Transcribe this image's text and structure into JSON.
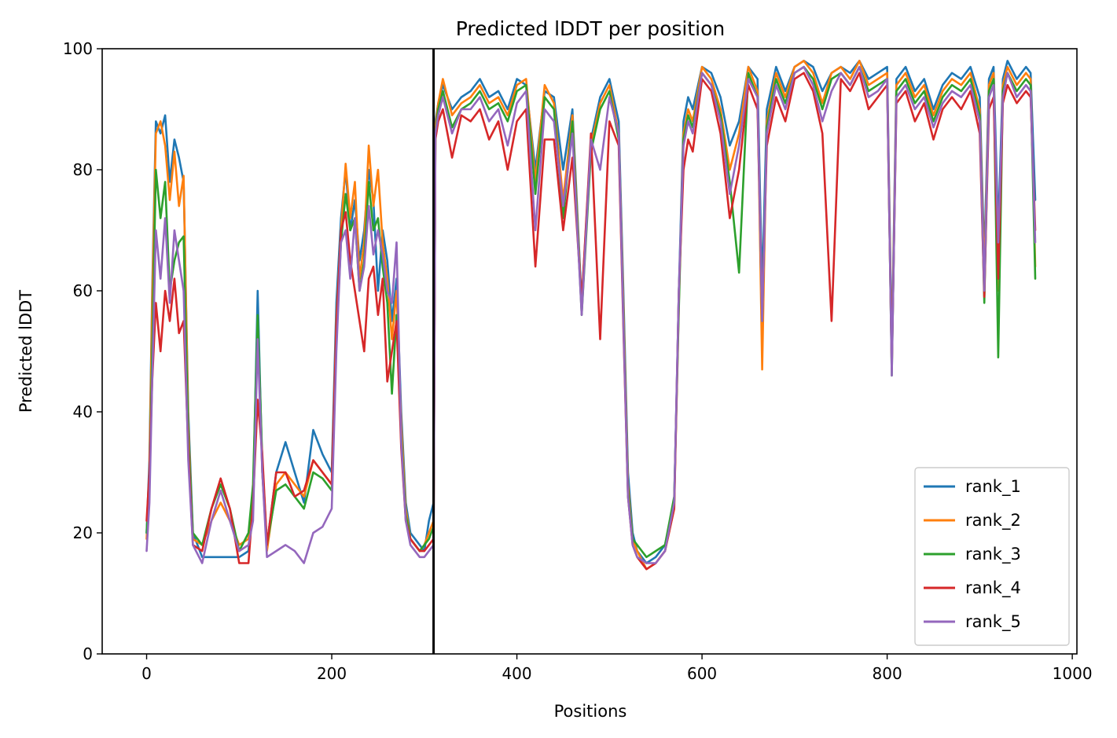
{
  "chart_data": {
    "type": "line",
    "title": "Predicted lDDT per position",
    "xlabel": "Positions",
    "ylabel": "Predicted lDDT",
    "xlim": [
      -48,
      1005
    ],
    "ylim": [
      0,
      100
    ],
    "xticks": [
      0,
      200,
      400,
      600,
      800,
      1000
    ],
    "yticks": [
      0,
      20,
      40,
      60,
      80,
      100
    ],
    "grid": false,
    "legend_position": "lower-right",
    "vline": {
      "x": 310,
      "color": "#000000"
    },
    "series": [
      {
        "name": "rank_1",
        "color": "#1f77b4",
        "x": [
          0,
          3,
          6,
          10,
          15,
          20,
          25,
          30,
          35,
          40,
          45,
          50,
          60,
          70,
          80,
          90,
          100,
          110,
          115,
          120,
          125,
          130,
          140,
          150,
          160,
          170,
          180,
          190,
          200,
          205,
          210,
          215,
          220,
          225,
          230,
          235,
          240,
          245,
          250,
          255,
          260,
          265,
          270,
          275,
          280,
          285,
          290,
          295,
          300,
          305,
          310,
          312,
          315,
          320,
          330,
          340,
          350,
          360,
          370,
          380,
          390,
          400,
          410,
          420,
          430,
          440,
          450,
          460,
          470,
          480,
          490,
          500,
          510,
          515,
          520,
          525,
          530,
          540,
          550,
          560,
          570,
          575,
          580,
          585,
          590,
          600,
          610,
          620,
          630,
          640,
          650,
          660,
          665,
          670,
          680,
          690,
          700,
          710,
          720,
          730,
          740,
          750,
          760,
          770,
          780,
          790,
          800,
          805,
          810,
          820,
          830,
          840,
          850,
          860,
          870,
          880,
          890,
          900,
          905,
          910,
          915,
          920,
          925,
          930,
          940,
          950,
          955,
          960
        ],
        "y": [
          20,
          32,
          60,
          88,
          86,
          89,
          78,
          85,
          82,
          78,
          40,
          20,
          16,
          16,
          16,
          16,
          16,
          17,
          25,
          60,
          30,
          18,
          30,
          35,
          30,
          25,
          37,
          33,
          30,
          58,
          72,
          80,
          70,
          75,
          65,
          70,
          80,
          75,
          60,
          70,
          65,
          55,
          62,
          40,
          25,
          20,
          19,
          18,
          17,
          22,
          25,
          88,
          91,
          94,
          90,
          92,
          93,
          95,
          92,
          93,
          90,
          95,
          94,
          80,
          93,
          92,
          80,
          90,
          58,
          85,
          92,
          95,
          88,
          60,
          30,
          20,
          17,
          15,
          16,
          18,
          25,
          60,
          88,
          92,
          90,
          97,
          96,
          92,
          84,
          88,
          97,
          95,
          60,
          90,
          97,
          93,
          97,
          98,
          97,
          93,
          96,
          97,
          96,
          98,
          95,
          96,
          97,
          50,
          95,
          97,
          93,
          95,
          90,
          94,
          96,
          95,
          97,
          92,
          65,
          95,
          97,
          70,
          95,
          98,
          95,
          97,
          96,
          75
        ]
      },
      {
        "name": "rank_2",
        "color": "#ff7f0e",
        "x": [
          0,
          3,
          6,
          10,
          15,
          20,
          25,
          30,
          35,
          40,
          45,
          50,
          60,
          70,
          80,
          90,
          100,
          110,
          115,
          120,
          125,
          130,
          140,
          150,
          160,
          170,
          180,
          190,
          200,
          205,
          210,
          215,
          220,
          225,
          230,
          235,
          240,
          245,
          250,
          255,
          260,
          265,
          270,
          275,
          280,
          285,
          290,
          295,
          300,
          305,
          310,
          312,
          315,
          320,
          330,
          340,
          350,
          360,
          370,
          380,
          390,
          400,
          410,
          420,
          430,
          440,
          450,
          460,
          470,
          480,
          490,
          500,
          510,
          515,
          520,
          525,
          530,
          540,
          550,
          560,
          570,
          575,
          580,
          585,
          590,
          600,
          610,
          620,
          630,
          640,
          650,
          660,
          665,
          670,
          680,
          690,
          700,
          710,
          720,
          730,
          740,
          750,
          760,
          770,
          780,
          790,
          800,
          805,
          810,
          820,
          830,
          840,
          850,
          860,
          870,
          880,
          890,
          900,
          905,
          910,
          915,
          920,
          925,
          930,
          940,
          950,
          955,
          960
        ],
        "y": [
          19,
          30,
          58,
          86,
          88,
          84,
          75,
          83,
          74,
          79,
          38,
          19,
          18,
          22,
          25,
          22,
          18,
          19,
          26,
          55,
          30,
          17,
          28,
          30,
          28,
          26,
          32,
          30,
          28,
          55,
          70,
          81,
          72,
          78,
          62,
          68,
          84,
          74,
          80,
          68,
          62,
          52,
          60,
          38,
          24,
          19,
          18,
          17,
          18,
          20,
          22,
          87,
          91,
          95,
          89,
          91,
          92,
          94,
          91,
          92,
          89,
          94,
          95,
          78,
          94,
          91,
          75,
          89,
          57,
          84,
          91,
          94,
          86,
          58,
          28,
          19,
          17,
          14,
          15,
          17,
          24,
          58,
          86,
          90,
          88,
          97,
          95,
          90,
          80,
          86,
          97,
          93,
          47,
          88,
          96,
          92,
          97,
          98,
          96,
          91,
          96,
          97,
          95,
          98,
          94,
          95,
          96,
          48,
          94,
          96,
          92,
          94,
          89,
          93,
          95,
          94,
          96,
          90,
          62,
          94,
          96,
          60,
          94,
          97,
          94,
          96,
          95,
          64
        ]
      },
      {
        "name": "rank_3",
        "color": "#2ca02c",
        "x": [
          0,
          3,
          6,
          10,
          15,
          20,
          25,
          30,
          35,
          40,
          45,
          50,
          60,
          70,
          80,
          90,
          100,
          110,
          115,
          120,
          125,
          130,
          140,
          150,
          160,
          170,
          180,
          190,
          200,
          205,
          210,
          215,
          220,
          225,
          230,
          235,
          240,
          245,
          250,
          255,
          260,
          265,
          270,
          275,
          280,
          285,
          290,
          295,
          300,
          305,
          310,
          312,
          315,
          320,
          330,
          340,
          350,
          360,
          370,
          380,
          390,
          400,
          410,
          420,
          430,
          440,
          450,
          460,
          470,
          480,
          490,
          500,
          510,
          515,
          520,
          525,
          530,
          540,
          550,
          560,
          570,
          575,
          580,
          585,
          590,
          600,
          610,
          620,
          630,
          640,
          650,
          660,
          665,
          670,
          680,
          690,
          700,
          710,
          720,
          730,
          740,
          750,
          760,
          770,
          780,
          790,
          800,
          805,
          810,
          820,
          830,
          840,
          850,
          860,
          870,
          880,
          890,
          900,
          905,
          910,
          915,
          920,
          925,
          930,
          940,
          950,
          955,
          960
        ],
        "y": [
          20,
          28,
          50,
          80,
          72,
          78,
          60,
          65,
          68,
          69,
          36,
          20,
          18,
          24,
          28,
          24,
          17,
          20,
          28,
          56,
          32,
          18,
          27,
          28,
          26,
          24,
          30,
          29,
          27,
          52,
          68,
          76,
          70,
          72,
          60,
          65,
          78,
          70,
          72,
          64,
          58,
          43,
          56,
          36,
          23,
          19,
          18,
          17,
          18,
          19,
          21,
          86,
          90,
          93,
          87,
          90,
          91,
          93,
          90,
          91,
          88,
          93,
          94,
          76,
          92,
          90,
          72,
          88,
          56,
          83,
          90,
          93,
          85,
          56,
          27,
          19,
          18,
          16,
          17,
          18,
          26,
          57,
          85,
          89,
          87,
          96,
          94,
          89,
          78,
          63,
          96,
          92,
          55,
          87,
          95,
          91,
          96,
          97,
          95,
          90,
          95,
          96,
          94,
          97,
          93,
          94,
          95,
          46,
          93,
          95,
          91,
          93,
          88,
          92,
          94,
          93,
          95,
          89,
          58,
          93,
          95,
          49,
          93,
          96,
          93,
          95,
          94,
          62
        ]
      },
      {
        "name": "rank_4",
        "color": "#d62728",
        "x": [
          0,
          3,
          6,
          10,
          15,
          20,
          25,
          30,
          35,
          40,
          45,
          50,
          60,
          70,
          80,
          90,
          100,
          110,
          115,
          120,
          125,
          130,
          140,
          150,
          160,
          170,
          180,
          190,
          200,
          205,
          210,
          215,
          220,
          225,
          230,
          235,
          240,
          245,
          250,
          255,
          260,
          265,
          270,
          275,
          280,
          285,
          290,
          295,
          300,
          305,
          310,
          312,
          315,
          320,
          330,
          340,
          350,
          360,
          370,
          380,
          390,
          400,
          410,
          420,
          430,
          440,
          450,
          460,
          470,
          480,
          490,
          500,
          510,
          515,
          520,
          525,
          530,
          540,
          550,
          560,
          570,
          575,
          580,
          585,
          590,
          600,
          610,
          620,
          630,
          640,
          650,
          660,
          665,
          670,
          680,
          690,
          700,
          710,
          720,
          730,
          740,
          750,
          760,
          770,
          780,
          790,
          800,
          805,
          810,
          820,
          830,
          840,
          850,
          860,
          870,
          880,
          890,
          900,
          905,
          910,
          915,
          920,
          925,
          930,
          940,
          950,
          955,
          960
        ],
        "y": [
          22,
          30,
          45,
          58,
          50,
          60,
          55,
          62,
          53,
          55,
          34,
          18,
          17,
          24,
          29,
          24,
          15,
          15,
          25,
          42,
          33,
          18,
          30,
          30,
          26,
          27,
          32,
          30,
          28,
          54,
          70,
          73,
          65,
          60,
          55,
          50,
          62,
          64,
          56,
          62,
          45,
          50,
          55,
          34,
          22,
          19,
          18,
          17,
          17,
          18,
          19,
          85,
          88,
          90,
          82,
          89,
          88,
          90,
          85,
          88,
          80,
          88,
          90,
          64,
          85,
          85,
          70,
          82,
          58,
          86,
          52,
          88,
          84,
          54,
          26,
          18,
          16,
          14,
          15,
          17,
          24,
          60,
          80,
          85,
          83,
          95,
          93,
          86,
          72,
          80,
          94,
          90,
          56,
          84,
          92,
          88,
          95,
          96,
          93,
          86,
          55,
          95,
          93,
          96,
          90,
          92,
          94,
          47,
          91,
          93,
          88,
          91,
          85,
          90,
          92,
          90,
          93,
          86,
          59,
          90,
          92,
          62,
          91,
          94,
          91,
          93,
          92,
          70
        ]
      },
      {
        "name": "rank_5",
        "color": "#9467bd",
        "x": [
          0,
          3,
          6,
          10,
          15,
          20,
          25,
          30,
          35,
          40,
          45,
          50,
          60,
          70,
          80,
          90,
          100,
          110,
          115,
          120,
          125,
          130,
          140,
          150,
          160,
          170,
          180,
          190,
          200,
          205,
          210,
          215,
          220,
          225,
          230,
          235,
          240,
          245,
          250,
          255,
          260,
          265,
          270,
          275,
          280,
          285,
          290,
          295,
          300,
          305,
          310,
          312,
          315,
          320,
          330,
          340,
          350,
          360,
          370,
          380,
          390,
          400,
          410,
          420,
          430,
          440,
          450,
          460,
          470,
          480,
          490,
          500,
          510,
          515,
          520,
          525,
          530,
          540,
          550,
          560,
          570,
          575,
          580,
          585,
          590,
          600,
          610,
          620,
          630,
          640,
          650,
          660,
          665,
          670,
          680,
          690,
          700,
          710,
          720,
          730,
          740,
          750,
          760,
          770,
          780,
          790,
          800,
          805,
          810,
          820,
          830,
          840,
          850,
          860,
          870,
          880,
          890,
          900,
          905,
          910,
          915,
          920,
          925,
          930,
          940,
          950,
          955,
          960
        ],
        "y": [
          17,
          25,
          45,
          70,
          62,
          72,
          58,
          70,
          65,
          60,
          32,
          18,
          15,
          22,
          27,
          22,
          17,
          18,
          22,
          52,
          30,
          16,
          17,
          18,
          17,
          15,
          20,
          21,
          24,
          50,
          68,
          70,
          62,
          72,
          60,
          64,
          74,
          66,
          70,
          66,
          60,
          58,
          68,
          35,
          22,
          18,
          17,
          16,
          16,
          17,
          18,
          86,
          89,
          92,
          86,
          90,
          90,
          92,
          88,
          90,
          84,
          91,
          93,
          70,
          90,
          88,
          74,
          86,
          56,
          85,
          80,
          92,
          86,
          55,
          26,
          18,
          16,
          15,
          15,
          17,
          25,
          60,
          84,
          88,
          86,
          96,
          94,
          88,
          76,
          84,
          95,
          92,
          55,
          86,
          94,
          90,
          96,
          97,
          94,
          88,
          93,
          96,
          94,
          97,
          92,
          93,
          95,
          46,
          92,
          94,
          90,
          92,
          87,
          91,
          93,
          92,
          94,
          88,
          60,
          92,
          94,
          68,
          92,
          96,
          92,
          94,
          93,
          68
        ]
      }
    ]
  }
}
